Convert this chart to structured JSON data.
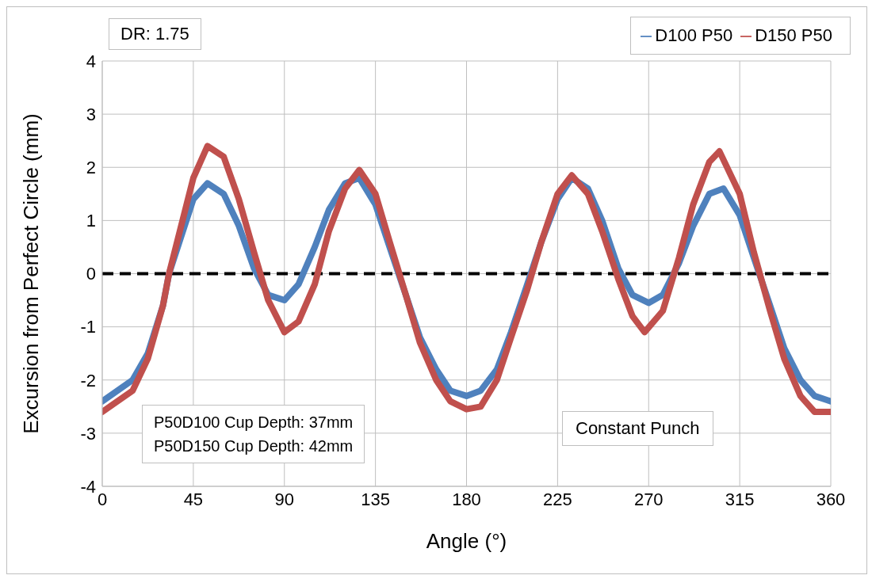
{
  "chart_data": {
    "type": "line",
    "xlabel": "Angle (°)",
    "ylabel": "Excursion from Perfect Circle (mm)",
    "xlim": [
      0,
      360
    ],
    "xticks": [
      0,
      45,
      90,
      135,
      180,
      225,
      270,
      315,
      360
    ],
    "ylim": [
      -4,
      4
    ],
    "yticks": [
      -4,
      -3,
      -2,
      -1,
      0,
      1,
      2,
      3,
      4
    ],
    "grid": true,
    "legend": "top right",
    "line_style": "solid",
    "marker": "none",
    "ref_lines": [
      {
        "axis": "y",
        "value": 0,
        "color": "#000000",
        "line_style": "dashed"
      }
    ],
    "annotations": [
      "DR: 1.75",
      "P50D100 Cup Depth: 37mm",
      "P50D150 Cup Depth: 42mm",
      "Constant Punch"
    ],
    "series": [
      {
        "name": "D100 P50",
        "color": "#4f81bd",
        "x": [
          0,
          15,
          22.5,
          30,
          33,
          45,
          52,
          60,
          67.5,
          75,
          82,
          90,
          97,
          105,
          112,
          120,
          127,
          135,
          142,
          150,
          157,
          165,
          172,
          180,
          187,
          195,
          202,
          210,
          217,
          225,
          232,
          240,
          247,
          255,
          262,
          270,
          277,
          285,
          292,
          300,
          307,
          315,
          322,
          330,
          337,
          345,
          352,
          360
        ],
        "values": [
          -2.4,
          -2.0,
          -1.5,
          -0.6,
          0,
          1.4,
          1.7,
          1.5,
          0.9,
          0.1,
          -0.4,
          -0.5,
          -0.2,
          0.5,
          1.2,
          1.7,
          1.8,
          1.3,
          0.5,
          -0.4,
          -1.2,
          -1.8,
          -2.2,
          -2.3,
          -2.2,
          -1.8,
          -1.1,
          -0.2,
          0.6,
          1.4,
          1.8,
          1.6,
          1.0,
          0.1,
          -0.4,
          -0.55,
          -0.4,
          0.2,
          0.9,
          1.5,
          1.6,
          1.1,
          0.3,
          -0.6,
          -1.4,
          -2.0,
          -2.3,
          -2.4
        ]
      },
      {
        "name": "D150 P50",
        "color": "#c0504d",
        "x": [
          0,
          15,
          22.5,
          30,
          33,
          45,
          52,
          60,
          67.5,
          75,
          82,
          90,
          97,
          105,
          112,
          120,
          127,
          135,
          142,
          150,
          157,
          165,
          172,
          180,
          187,
          195,
          202,
          210,
          217,
          225,
          232,
          240,
          247,
          255,
          262,
          268,
          277,
          285,
          292,
          300,
          305,
          315,
          322,
          330,
          337,
          345,
          352,
          360
        ],
        "values": [
          -2.6,
          -2.2,
          -1.6,
          -0.6,
          0,
          1.8,
          2.4,
          2.2,
          1.4,
          0.4,
          -0.5,
          -1.1,
          -0.9,
          -0.2,
          0.8,
          1.6,
          1.95,
          1.5,
          0.6,
          -0.4,
          -1.3,
          -2.0,
          -2.4,
          -2.55,
          -2.5,
          -2.0,
          -1.2,
          -0.3,
          0.6,
          1.5,
          1.85,
          1.5,
          0.8,
          -0.1,
          -0.8,
          -1.1,
          -0.7,
          0.3,
          1.3,
          2.1,
          2.3,
          1.5,
          0.4,
          -0.7,
          -1.6,
          -2.3,
          -2.6,
          -2.6
        ]
      }
    ]
  }
}
